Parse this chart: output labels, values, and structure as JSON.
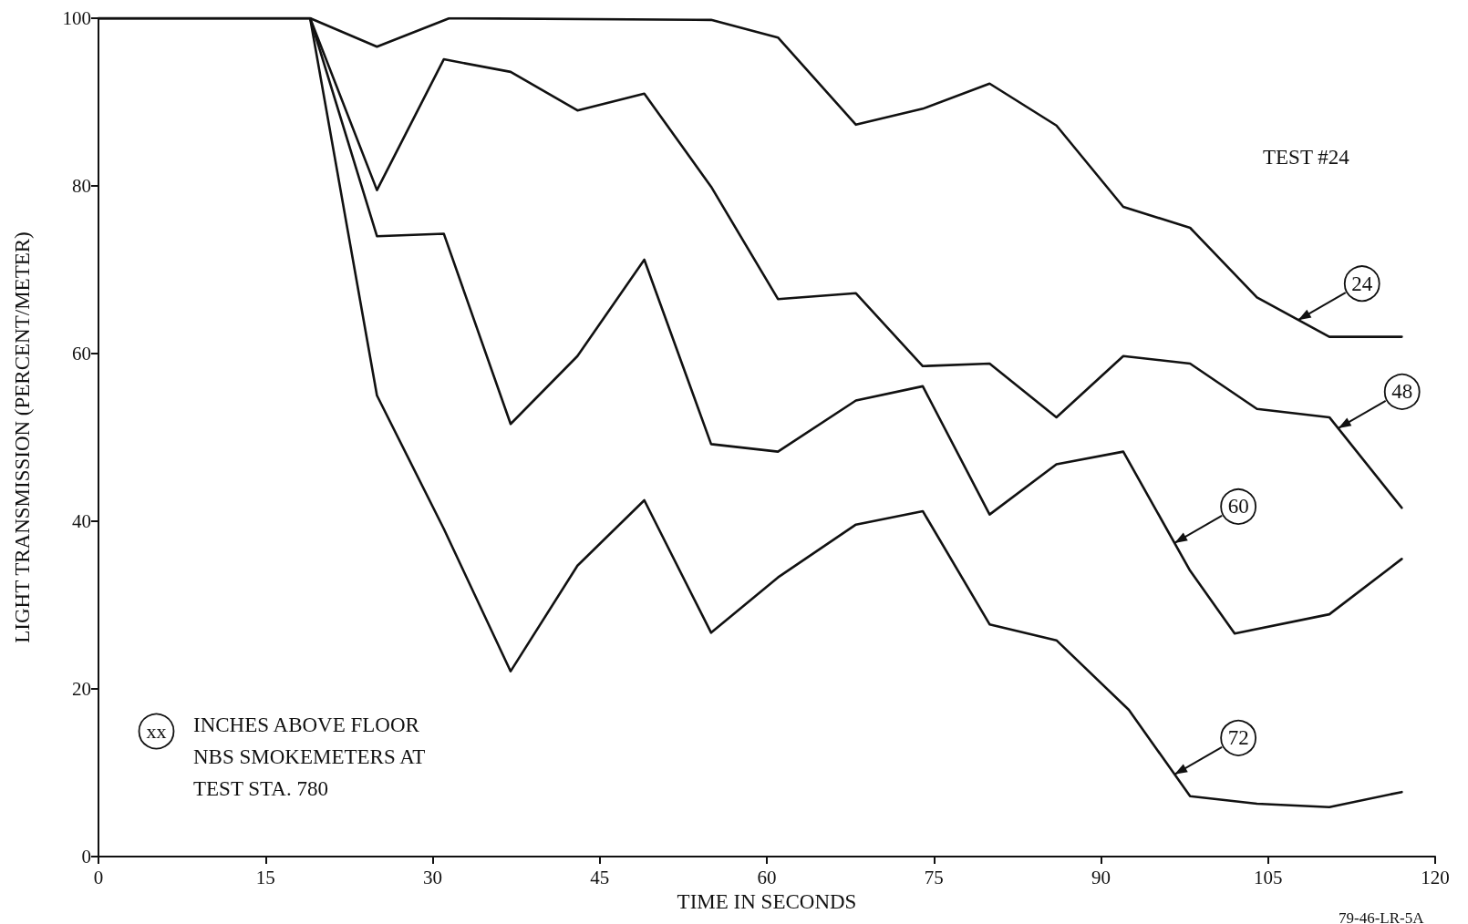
{
  "chart_data": {
    "type": "line",
    "xlabel": "TIME IN SECONDS",
    "ylabel": "LIGHT TRANSMISSION (PERCENT/METER)",
    "xlim": [
      0,
      120
    ],
    "xticks": [
      0,
      15,
      30,
      45,
      60,
      75,
      90,
      105,
      120
    ],
    "ylim": [
      0,
      100
    ],
    "yticks": [
      0,
      20,
      40,
      60,
      80,
      100
    ],
    "grid": false,
    "marker": "none",
    "line_style": "solid",
    "series": [
      {
        "color": "#111111",
        "x": [
          0,
          19,
          25,
          31.5,
          55,
          61,
          68,
          74,
          80,
          86,
          92,
          98,
          104,
          110.5,
          117
        ],
        "values": [
          100,
          100,
          96.6,
          100,
          99.8,
          97.7,
          87.3,
          89.2,
          92.2,
          87.2,
          77.5,
          75,
          66.7,
          62,
          62
        ]
      },
      {
        "color": "#111111",
        "x": [
          0,
          19,
          25,
          31,
          37,
          43,
          49,
          55,
          61,
          68,
          74,
          80,
          86,
          92,
          98,
          104,
          110.5,
          117
        ],
        "values": [
          100,
          100,
          79.5,
          95.1,
          93.6,
          89,
          91,
          79.9,
          66.5,
          67.2,
          58.5,
          58.8,
          52.4,
          59.7,
          58.8,
          53.4,
          52.4,
          41.6
        ]
      },
      {
        "color": "#111111",
        "x": [
          0,
          19,
          25,
          31,
          37,
          43,
          49,
          55,
          61,
          68,
          74,
          80,
          86,
          92,
          98,
          102,
          110.5,
          117
        ],
        "values": [
          100,
          100,
          74,
          74.3,
          51.6,
          59.7,
          71.2,
          49.2,
          48.3,
          54.4,
          56.1,
          40.8,
          46.8,
          48.3,
          34.1,
          26.6,
          28.9,
          35.5
        ]
      },
      {
        "color": "#111111",
        "x": [
          0,
          19,
          25,
          31,
          37,
          43,
          49,
          55,
          61,
          68,
          74,
          80,
          86,
          92.5,
          98,
          104,
          110.5,
          117
        ],
        "values": [
          100,
          100,
          55,
          39.1,
          22.1,
          34.7,
          42.5,
          26.7,
          33.3,
          39.6,
          41.2,
          27.7,
          25.8,
          17.5,
          7.2,
          6.3,
          5.9,
          7.7
        ]
      }
    ],
    "annotations": [
      "TEST #24",
      "xx",
      "INCHES ABOVE FLOOR\nNBS SMOKEMETERS AT\nTEST STA. 780",
      "79-46-LR-5A",
      {
        "text": "24",
        "x": 107.7,
        "y": 64
      },
      {
        "text": "48",
        "x": 111.3,
        "y": 51.1
      },
      {
        "text": "60",
        "x": 96.6,
        "y": 37.4
      },
      {
        "text": "72",
        "x": 96.6,
        "y": 9.8
      }
    ]
  }
}
